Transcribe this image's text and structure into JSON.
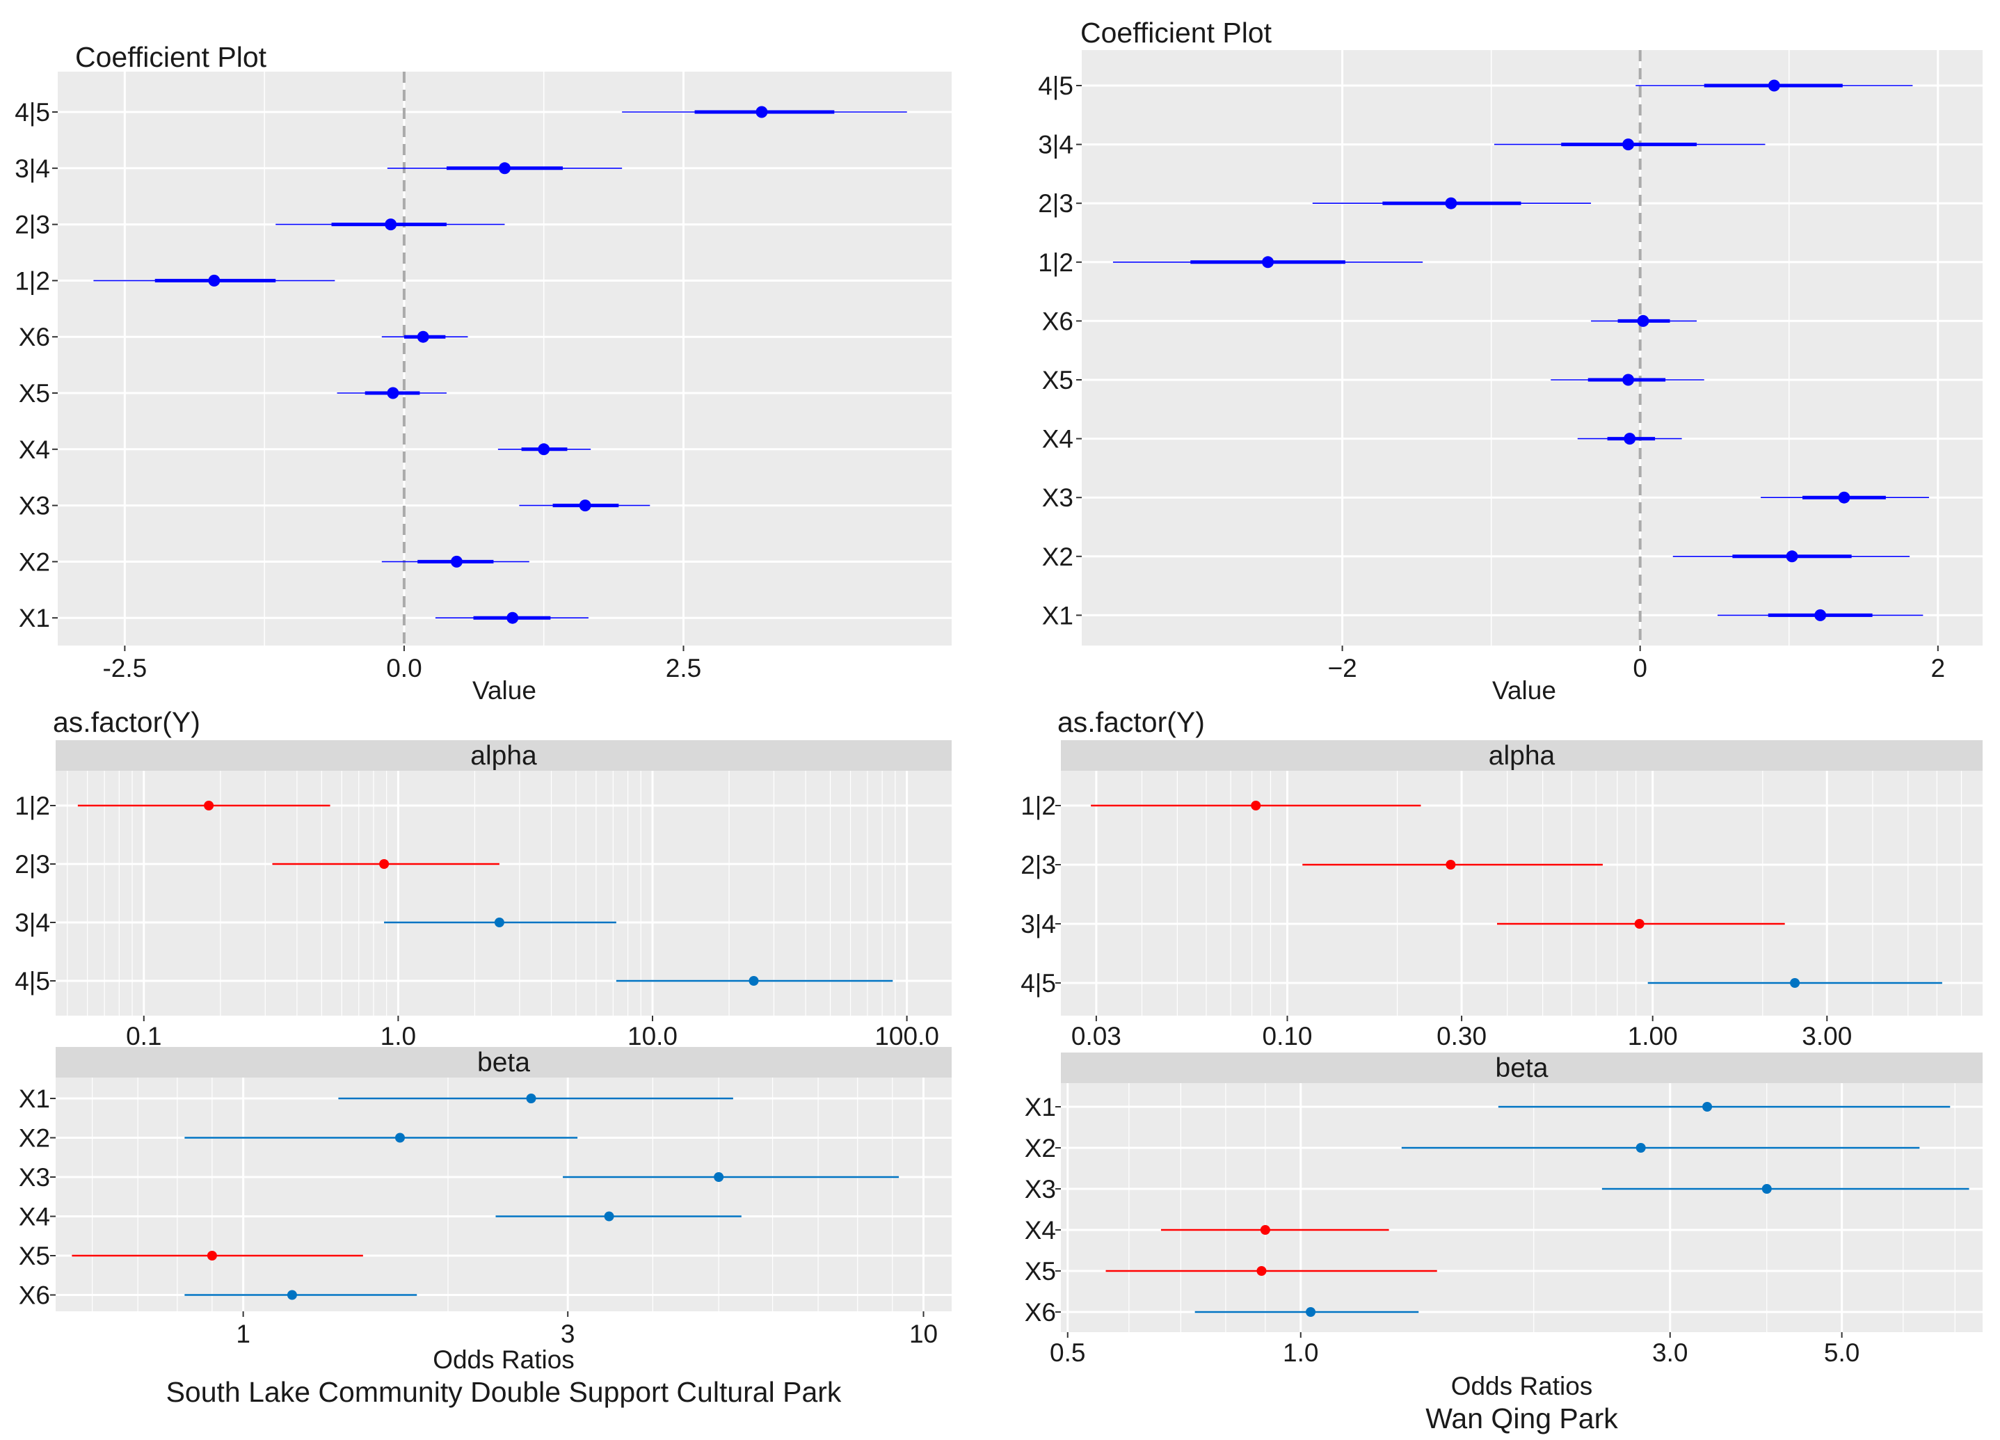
{
  "colors": {
    "panel_bg": "#EBEBEB",
    "grid": "#FFFFFF",
    "strip_bg": "#D9D9D9",
    "coef": "#0000FF",
    "red": "#FF0000",
    "teal": "#0073C2",
    "zero": "#AAAAAA",
    "text": "#1A1A1A"
  },
  "chart_data": [
    {
      "id": "c1",
      "type": "scatter",
      "subtype": "coefficient-plot",
      "title": "Coefficient Plot",
      "xlabel": "Value",
      "ylabel": "",
      "xlim": [
        -3.1,
        4.9
      ],
      "xticks": [
        {
          "v": -2.5,
          "label": "-2.5"
        },
        {
          "v": 0,
          "label": "0.0"
        },
        {
          "v": 2.5,
          "label": "2.5"
        }
      ],
      "categories": [
        "4|5",
        "3|4",
        "2|3",
        "1|2",
        "X6",
        "X5",
        "X4",
        "X3",
        "X2",
        "X1"
      ],
      "series": [
        {
          "name": "estimate",
          "points": [
            {
              "label": "4|5",
              "est": 3.2,
              "inner": [
                2.6,
                3.85
              ],
              "outer": [
                1.95,
                4.5
              ]
            },
            {
              "label": "3|4",
              "est": 0.9,
              "inner": [
                0.38,
                1.42
              ],
              "outer": [
                -0.15,
                1.95
              ]
            },
            {
              "label": "2|3",
              "est": -0.12,
              "inner": [
                -0.65,
                0.38
              ],
              "outer": [
                -1.15,
                0.9
              ]
            },
            {
              "label": "1|2",
              "est": -1.7,
              "inner": [
                -2.23,
                -1.15
              ],
              "outer": [
                -2.78,
                -0.62
              ]
            },
            {
              "label": "X6",
              "est": 0.17,
              "inner": [
                0.0,
                0.37
              ],
              "outer": [
                -0.2,
                0.57
              ]
            },
            {
              "label": "X5",
              "est": -0.1,
              "inner": [
                -0.35,
                0.14
              ],
              "outer": [
                -0.6,
                0.38
              ]
            },
            {
              "label": "X4",
              "est": 1.25,
              "inner": [
                1.05,
                1.46
              ],
              "outer": [
                0.84,
                1.67
              ]
            },
            {
              "label": "X3",
              "est": 1.62,
              "inner": [
                1.33,
                1.92
              ],
              "outer": [
                1.03,
                2.2
              ]
            },
            {
              "label": "X2",
              "est": 0.47,
              "inner": [
                0.12,
                0.8
              ],
              "outer": [
                -0.2,
                1.12
              ]
            },
            {
              "label": "X1",
              "est": 0.97,
              "inner": [
                0.62,
                1.31
              ],
              "outer": [
                0.28,
                1.65
              ]
            }
          ]
        }
      ]
    },
    {
      "id": "c2",
      "type": "scatter",
      "subtype": "coefficient-plot",
      "title": "Coefficient Plot",
      "xlabel": "Value",
      "ylabel": "",
      "xlim": [
        -3.75,
        2.3
      ],
      "xticks": [
        {
          "v": -2,
          "label": "−2"
        },
        {
          "v": 0,
          "label": "0"
        },
        {
          "v": 2,
          "label": "2"
        }
      ],
      "categories": [
        "4|5",
        "3|4",
        "2|3",
        "1|2",
        "X6",
        "X5",
        "X4",
        "X3",
        "X2",
        "X1"
      ],
      "series": [
        {
          "name": "estimate",
          "points": [
            {
              "label": "4|5",
              "est": 0.9,
              "inner": [
                0.43,
                1.36
              ],
              "outer": [
                -0.03,
                1.83
              ]
            },
            {
              "label": "3|4",
              "est": -0.08,
              "inner": [
                -0.53,
                0.38
              ],
              "outer": [
                -0.98,
                0.84
              ]
            },
            {
              "label": "2|3",
              "est": -1.27,
              "inner": [
                -1.73,
                -0.8
              ],
              "outer": [
                -2.2,
                -0.33
              ]
            },
            {
              "label": "1|2",
              "est": -2.5,
              "inner": [
                -3.02,
                -1.98
              ],
              "outer": [
                -3.54,
                -1.46
              ]
            },
            {
              "label": "X6",
              "est": 0.02,
              "inner": [
                -0.15,
                0.2
              ],
              "outer": [
                -0.33,
                0.38
              ]
            },
            {
              "label": "X5",
              "est": -0.08,
              "inner": [
                -0.35,
                0.17
              ],
              "outer": [
                -0.6,
                0.43
              ]
            },
            {
              "label": "X4",
              "est": -0.07,
              "inner": [
                -0.22,
                0.1
              ],
              "outer": [
                -0.42,
                0.28
              ]
            },
            {
              "label": "X3",
              "est": 1.37,
              "inner": [
                1.09,
                1.65
              ],
              "outer": [
                0.81,
                1.94
              ]
            },
            {
              "label": "X2",
              "est": 1.02,
              "inner": [
                0.62,
                1.42
              ],
              "outer": [
                0.22,
                1.81
              ]
            },
            {
              "label": "X1",
              "est": 1.21,
              "inner": [
                0.86,
                1.56
              ],
              "outer": [
                0.52,
                1.9
              ]
            }
          ]
        }
      ]
    },
    {
      "id": "c3",
      "type": "scatter",
      "subtype": "odds-ratio-plot",
      "log_x": true,
      "title": "as.factor(Y)",
      "xlabel": "Odds Ratios",
      "caption": "South Lake Community Double Support Cultural Park",
      "facets": [
        {
          "name": "alpha",
          "xlim": [
            0.045,
            150
          ],
          "xticks": [
            {
              "v": 0.1,
              "label": "0.1"
            },
            {
              "v": 1,
              "label": "1.0"
            },
            {
              "v": 10,
              "label": "10.0"
            },
            {
              "v": 100,
              "label": "100.0"
            }
          ],
          "points": [
            {
              "label": "1|2",
              "est": 0.18,
              "low": 0.055,
              "high": 0.54,
              "color": "red"
            },
            {
              "label": "2|3",
              "est": 0.88,
              "low": 0.32,
              "high": 2.5,
              "color": "red"
            },
            {
              "label": "3|4",
              "est": 2.5,
              "low": 0.88,
              "high": 7.2,
              "color": "teal"
            },
            {
              "label": "4|5",
              "est": 25,
              "low": 7.2,
              "high": 88,
              "color": "teal"
            }
          ]
        },
        {
          "name": "beta",
          "xlim": [
            0.53,
            11
          ],
          "xticks": [
            {
              "v": 1,
              "label": "1"
            },
            {
              "v": 3,
              "label": "3"
            },
            {
              "v": 10,
              "label": "10"
            }
          ],
          "points": [
            {
              "label": "X1",
              "est": 2.65,
              "low": 1.38,
              "high": 5.25,
              "color": "teal"
            },
            {
              "label": "X2",
              "est": 1.7,
              "low": 0.82,
              "high": 3.1,
              "color": "teal"
            },
            {
              "label": "X3",
              "est": 5.0,
              "low": 2.95,
              "high": 9.2,
              "color": "teal"
            },
            {
              "label": "X4",
              "est": 3.45,
              "low": 2.35,
              "high": 5.4,
              "color": "teal"
            },
            {
              "label": "X5",
              "est": 0.9,
              "low": 0.56,
              "high": 1.5,
              "color": "red"
            },
            {
              "label": "X6",
              "est": 1.18,
              "low": 0.82,
              "high": 1.8,
              "color": "teal"
            }
          ]
        }
      ]
    },
    {
      "id": "c4",
      "type": "scatter",
      "subtype": "odds-ratio-plot",
      "log_x": true,
      "title": "as.factor(Y)",
      "xlabel": "Odds Ratios",
      "caption": "Wan Qing Park",
      "facets": [
        {
          "name": "alpha",
          "xlim": [
            0.024,
            8.0
          ],
          "xticks": [
            {
              "v": 0.03,
              "label": "0.03"
            },
            {
              "v": 0.1,
              "label": "0.10"
            },
            {
              "v": 0.3,
              "label": "0.30"
            },
            {
              "v": 1,
              "label": "1.00"
            },
            {
              "v": 3,
              "label": "3.00"
            }
          ],
          "points": [
            {
              "label": "1|2",
              "est": 0.082,
              "low": 0.029,
              "high": 0.232,
              "color": "red"
            },
            {
              "label": "2|3",
              "est": 0.28,
              "low": 0.11,
              "high": 0.73,
              "color": "red"
            },
            {
              "label": "3|4",
              "est": 0.92,
              "low": 0.375,
              "high": 2.3,
              "color": "red"
            },
            {
              "label": "4|5",
              "est": 2.45,
              "low": 0.97,
              "high": 6.2,
              "color": "teal"
            }
          ]
        },
        {
          "name": "beta",
          "xlim": [
            0.49,
            7.6
          ],
          "xticks": [
            {
              "v": 0.5,
              "label": "0.5"
            },
            {
              "v": 1,
              "label": "1.0"
            },
            {
              "v": 3,
              "label": "3.0"
            },
            {
              "v": 5,
              "label": "5.0"
            }
          ],
          "points": [
            {
              "label": "X1",
              "est": 3.35,
              "low": 1.8,
              "high": 6.9,
              "color": "teal"
            },
            {
              "label": "X2",
              "est": 2.75,
              "low": 1.35,
              "high": 6.3,
              "color": "teal"
            },
            {
              "label": "X3",
              "est": 4.0,
              "low": 2.45,
              "high": 7.3,
              "color": "teal"
            },
            {
              "label": "X4",
              "est": 0.9,
              "low": 0.66,
              "high": 1.3,
              "color": "red"
            },
            {
              "label": "X5",
              "est": 0.89,
              "low": 0.56,
              "high": 1.5,
              "color": "red"
            },
            {
              "label": "X6",
              "est": 1.03,
              "low": 0.73,
              "high": 1.42,
              "color": "teal"
            }
          ]
        }
      ]
    }
  ]
}
